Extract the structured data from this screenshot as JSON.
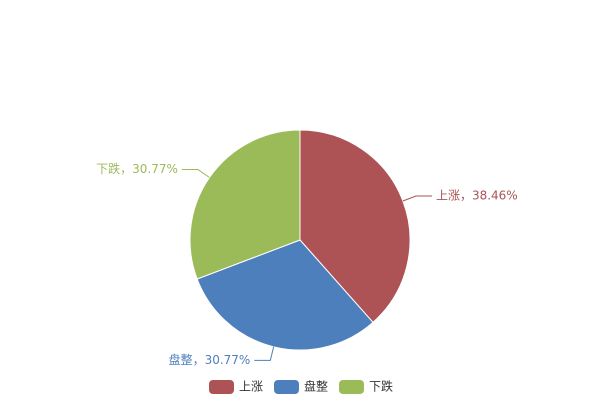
{
  "chart_data": {
    "type": "pie",
    "categories": [
      "上涨",
      "盘整",
      "下跌"
    ],
    "values": [
      38.46,
      30.77,
      30.77
    ],
    "value_labels": [
      "上涨，38.46%",
      "盘整，30.77%",
      "下跌，30.77%"
    ],
    "colors": [
      "#ad5255",
      "#4e7fbd",
      "#9bbb59"
    ],
    "legend": "bottom"
  }
}
